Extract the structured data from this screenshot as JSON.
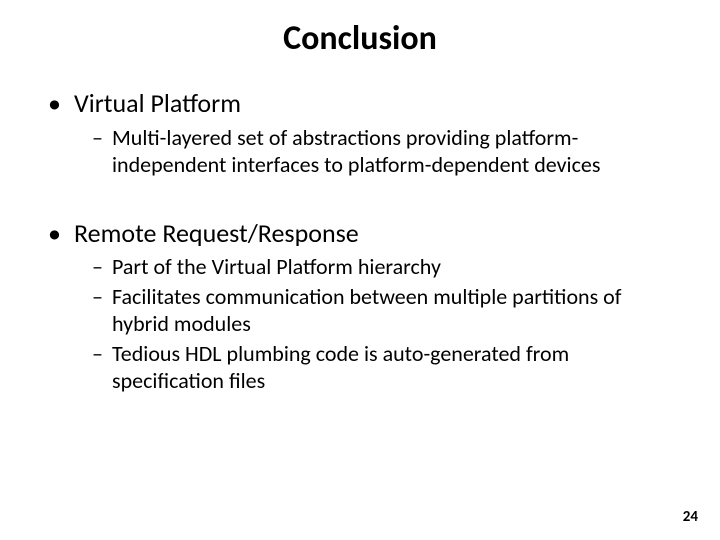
{
  "slide": {
    "title": "Conclusion",
    "title_fontsize": 34,
    "title_fontweight": 700,
    "title_color": "#000000",
    "background_color": "#ffffff",
    "text_color": "#000000",
    "page_number": "24",
    "page_number_fontsize": 15,
    "bullets": [
      {
        "label": "Virtual Platform",
        "fontsize": 26,
        "sub_fontsize": 22,
        "sub": [
          "Multi-layered set of abstractions providing platform-independent interfaces to platform-dependent devices"
        ]
      },
      {
        "label": "Remote Request/Response",
        "fontsize": 26,
        "sub_fontsize": 22,
        "sub": [
          "Part of the Virtual Platform hierarchy",
          "Facilitates communication between multiple partitions of hybrid modules",
          "Tedious HDL plumbing code is auto-generated from specification files"
        ]
      }
    ]
  }
}
